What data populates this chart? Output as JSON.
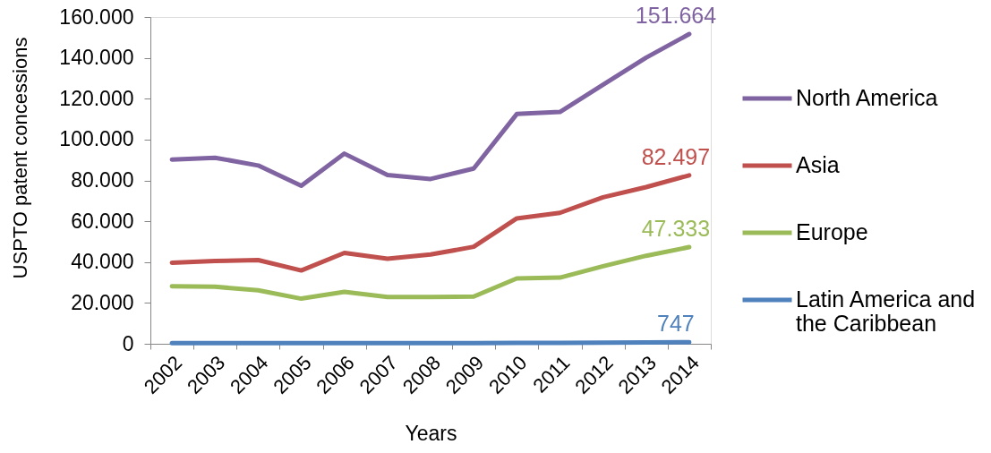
{
  "chart_data": {
    "type": "line",
    "xlabel": "Years",
    "ylabel": "USPTO patent concessions",
    "categories": [
      "2002",
      "2003",
      "2004",
      "2005",
      "2006",
      "2007",
      "2008",
      "2009",
      "2010",
      "2011",
      "2012",
      "2013",
      "2014"
    ],
    "series": [
      {
        "name": "North America",
        "color": "#8064a2",
        "values": [
          90200,
          91100,
          87300,
          77400,
          93100,
          82600,
          80700,
          85800,
          112500,
          113500,
          126800,
          140100,
          151664
        ],
        "value_labels": [
          null,
          null,
          null,
          null,
          null,
          null,
          null,
          null,
          null,
          null,
          null,
          null,
          "151.664"
        ]
      },
      {
        "name": "Asia",
        "color": "#c0504d",
        "values": [
          39700,
          40500,
          41000,
          35900,
          44500,
          41600,
          43700,
          47500,
          61400,
          64100,
          71700,
          76700,
          82497
        ],
        "value_labels": [
          null,
          null,
          null,
          null,
          null,
          null,
          null,
          null,
          null,
          null,
          null,
          null,
          "82.497"
        ]
      },
      {
        "name": "Europe",
        "color": "#9bbb59",
        "values": [
          28200,
          27900,
          26200,
          22100,
          25400,
          22900,
          22900,
          23100,
          32000,
          32400,
          38000,
          43100,
          47333
        ],
        "value_labels": [
          null,
          null,
          null,
          null,
          null,
          null,
          null,
          null,
          null,
          null,
          null,
          null,
          "47.333"
        ]
      },
      {
        "name": "Latin America and the Caribbean",
        "color": "#4f81bd",
        "values": [
          300,
          300,
          300,
          300,
          300,
          300,
          300,
          300,
          400,
          400,
          500,
          700,
          747
        ],
        "value_labels": [
          null,
          null,
          null,
          null,
          null,
          null,
          null,
          null,
          null,
          null,
          null,
          null,
          "747"
        ]
      }
    ],
    "ylim": [
      0,
      160000
    ],
    "yticks": [
      0,
      {
        "value": 20000,
        "label": "20.000"
      },
      {
        "value": 40000,
        "label": "40.000"
      },
      {
        "value": 60000,
        "label": "60.000"
      },
      {
        "value": 80000,
        "label": "80.000"
      },
      {
        "value": 100000,
        "label": "100.000"
      },
      {
        "value": 120000,
        "label": "120.000"
      },
      {
        "value": 140000,
        "label": "140.000"
      },
      {
        "value": 160000,
        "label": "160.000"
      }
    ],
    "grid": false,
    "legend": "right",
    "marker": "none",
    "line_style": "solid"
  }
}
